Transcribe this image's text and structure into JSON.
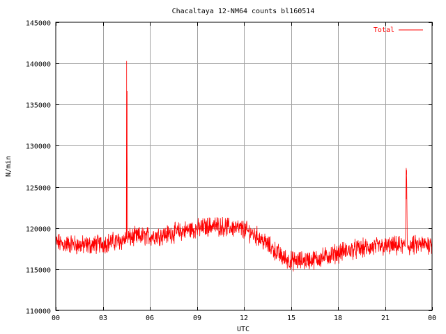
{
  "chart_data": {
    "type": "line",
    "title": "Chacaltaya 12-NM64 counts bl160514",
    "xlabel": "UTC",
    "ylabel": "N/min",
    "xlim": [
      0,
      24
    ],
    "ylim": [
      110000,
      145000
    ],
    "x_ticks": [
      "00",
      "03",
      "06",
      "09",
      "12",
      "15",
      "18",
      "21",
      "00"
    ],
    "y_ticks": [
      "110000",
      "115000",
      "120000",
      "125000",
      "130000",
      "135000",
      "140000",
      "145000"
    ],
    "grid": true,
    "legend_position": "top-right",
    "series": [
      {
        "name": "Total",
        "color": "#ff0000",
        "x_hours": [
          0.0,
          0.5,
          1.0,
          1.5,
          2.0,
          2.5,
          3.0,
          3.5,
          4.0,
          4.4,
          4.5,
          4.52,
          4.55,
          4.58,
          4.6,
          4.7,
          5.0,
          5.5,
          6.0,
          6.5,
          7.0,
          7.5,
          8.0,
          8.5,
          9.0,
          9.5,
          10.0,
          10.5,
          11.0,
          11.5,
          12.0,
          12.5,
          13.0,
          13.5,
          14.0,
          14.5,
          15.0,
          15.5,
          16.0,
          16.5,
          17.0,
          17.5,
          18.0,
          18.5,
          19.0,
          19.5,
          20.0,
          20.5,
          21.0,
          21.5,
          22.0,
          22.3,
          22.35,
          22.38,
          22.42,
          22.45,
          22.5,
          23.0,
          23.5,
          24.0
        ],
        "values": [
          118300,
          118000,
          118100,
          117900,
          117900,
          118000,
          118100,
          118300,
          118400,
          118600,
          118700,
          140300,
          129300,
          118700,
          118800,
          118800,
          118900,
          119000,
          119000,
          119100,
          119200,
          119400,
          119600,
          119800,
          119900,
          120100,
          120300,
          120200,
          120100,
          120000,
          119800,
          119400,
          118800,
          118000,
          117200,
          116400,
          116000,
          116000,
          116100,
          116200,
          116400,
          116700,
          117000,
          117200,
          117400,
          117500,
          117600,
          117700,
          117700,
          117800,
          117800,
          117800,
          127300,
          126500,
          118000,
          117900,
          117800,
          117900,
          118000,
          118100
        ]
      }
    ]
  }
}
